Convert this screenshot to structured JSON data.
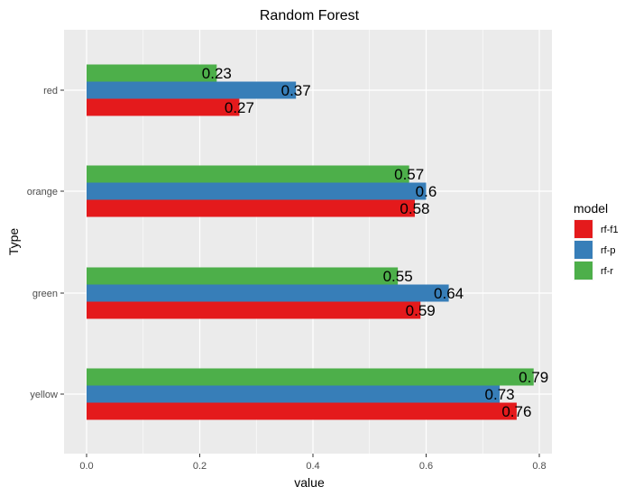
{
  "chart_data": {
    "type": "bar",
    "orientation": "horizontal",
    "title": "Random Forest",
    "xlabel": "value",
    "ylabel": "Type",
    "categories": [
      "red",
      "orange",
      "green",
      "yellow"
    ],
    "series": [
      {
        "name": "rf-r",
        "color": "#4daf4a",
        "values": [
          0.23,
          0.57,
          0.55,
          0.79
        ],
        "labels": [
          "0.23",
          "0.57",
          "0.55",
          "0.79"
        ]
      },
      {
        "name": "rf-p",
        "color": "#377eb8",
        "values": [
          0.37,
          0.6,
          0.64,
          0.73
        ],
        "labels": [
          "0.37",
          "0.6",
          "0.64",
          "0.73"
        ]
      },
      {
        "name": "rf-f1",
        "color": "#e41a1c",
        "values": [
          0.27,
          0.58,
          0.59,
          0.76
        ],
        "labels": [
          "0.27",
          "0.58",
          "0.59",
          "0.76"
        ]
      }
    ],
    "xlim": [
      -0.04,
      0.825
    ],
    "xticks": [
      0.0,
      0.2,
      0.4,
      0.6,
      0.8
    ],
    "xtick_labels": [
      "0.0",
      "0.2",
      "0.4",
      "0.6",
      "0.8"
    ],
    "legend": {
      "title": "model",
      "position": "right",
      "items": [
        {
          "name": "rf-f1",
          "color": "#e41a1c"
        },
        {
          "name": "rf-p",
          "color": "#377eb8"
        },
        {
          "name": "rf-r",
          "color": "#4daf4a"
        }
      ]
    },
    "background": "#ebebeb",
    "grid": true
  }
}
